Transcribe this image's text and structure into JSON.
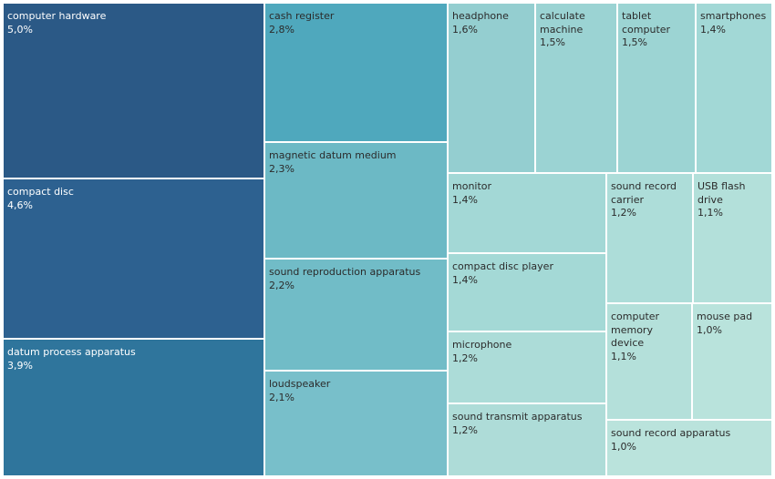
{
  "chart_data": {
    "type": "treemap",
    "title": "",
    "value_format": "percent, comma decimal",
    "color_scale": "sequential teal (light) to dark blue, by value",
    "items": [
      {
        "label": "computer hardware",
        "value": 5.0,
        "value_label": "5,0%",
        "color": "#2b5986"
      },
      {
        "label": "compact disc",
        "value": 4.6,
        "value_label": "4,6%",
        "color": "#2d6190"
      },
      {
        "label": "datum process apparatus",
        "value": 3.9,
        "value_label": "3,9%",
        "color": "#2f759c"
      },
      {
        "label": "cash register",
        "value": 2.8,
        "value_label": "2,8%",
        "color": "#4fa8bd"
      },
      {
        "label": "magnetic datum medium",
        "value": 2.3,
        "value_label": "2,3%",
        "color": "#6cb9c5"
      },
      {
        "label": "sound reproduction apparatus",
        "value": 2.2,
        "value_label": "2,2%",
        "color": "#71bcc7"
      },
      {
        "label": "loudspeaker",
        "value": 2.1,
        "value_label": "2,1%",
        "color": "#78bfca"
      },
      {
        "label": "headphone",
        "value": 1.6,
        "value_label": "1,6%",
        "color": "#94ced0"
      },
      {
        "label": "calculate machine",
        "value": 1.5,
        "value_label": "1,5%",
        "color": "#9bd3d3"
      },
      {
        "label": "tablet computer",
        "value": 1.5,
        "value_label": "1,5%",
        "color": "#9cd4d3"
      },
      {
        "label": "smartphones",
        "value": 1.4,
        "value_label": "1,4%",
        "color": "#a2d8d6"
      },
      {
        "label": "monitor",
        "value": 1.4,
        "value_label": "1,4%",
        "color": "#a3d8d6"
      },
      {
        "label": "compact disc player",
        "value": 1.4,
        "value_label": "1,4%",
        "color": "#a4d9d6"
      },
      {
        "label": "sound record carrier",
        "value": 1.2,
        "value_label": "1,2%",
        "color": "#add dd9"
      },
      {
        "label": "USB flash drive",
        "value": 1.1,
        "value_label": "1,1%",
        "color": "#b3e0da"
      },
      {
        "label": "microphone",
        "value": 1.2,
        "value_label": "1,2%",
        "color": "#acdcd8"
      },
      {
        "label": "sound transmit apparatus",
        "value": 1.2,
        "value_label": "1,2%",
        "color": "#aedcd8"
      },
      {
        "label": "computer memory device",
        "value": 1.1,
        "value_label": "1,1%",
        "color": "#b4e0da"
      },
      {
        "label": "mouse pad",
        "value": 1.0,
        "value_label": "1,0%",
        "color": "#b9e3dc"
      },
      {
        "label": "sound record apparatus",
        "value": 1.0,
        "value_label": "1,0%",
        "color": "#bae3dc"
      }
    ]
  }
}
